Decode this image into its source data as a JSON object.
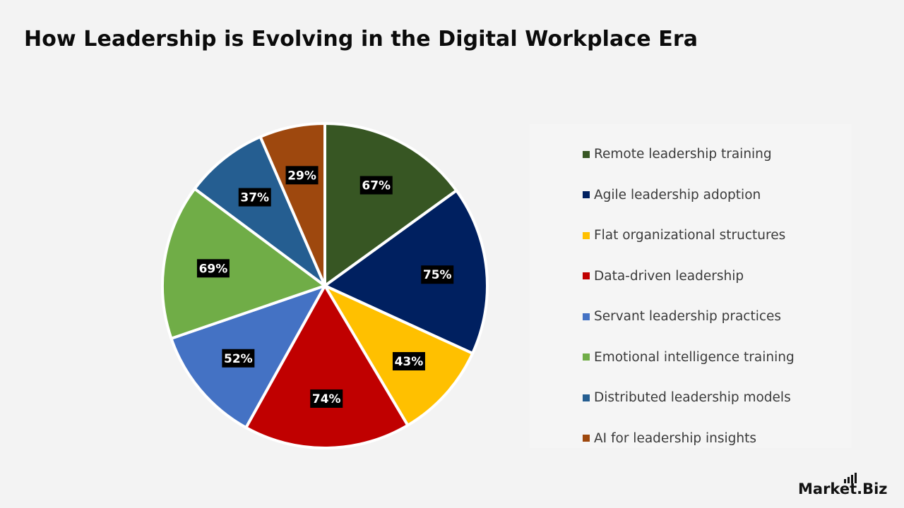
{
  "chart_data": {
    "type": "pie",
    "title": "How Leadership is Evolving in the Digital Workplace Era",
    "legend_position": "right",
    "slices": [
      {
        "label": "Remote leadership training",
        "value": 67,
        "display": "67%",
        "color": "#375623"
      },
      {
        "label": "Agile leadership adoption",
        "value": 75,
        "display": "75%",
        "color": "#002060"
      },
      {
        "label": "Flat organizational structures",
        "value": 43,
        "display": "43%",
        "color": "#ffc000"
      },
      {
        "label": "Data-driven leadership",
        "value": 74,
        "display": "74%",
        "color": "#c00000"
      },
      {
        "label": "Servant leadership practices",
        "value": 52,
        "display": "52%",
        "color": "#4472c4"
      },
      {
        "label": "Emotional intelligence training",
        "value": 69,
        "display": "69%",
        "color": "#70ad47"
      },
      {
        "label": "Distributed leadership models",
        "value": 37,
        "display": "37%",
        "color": "#255e91"
      },
      {
        "label": "AI for leadership insights",
        "value": 29,
        "display": "29%",
        "color": "#9e480e"
      }
    ]
  },
  "brand": {
    "name_part1": "Market",
    "name_part2": ".Biz"
  }
}
